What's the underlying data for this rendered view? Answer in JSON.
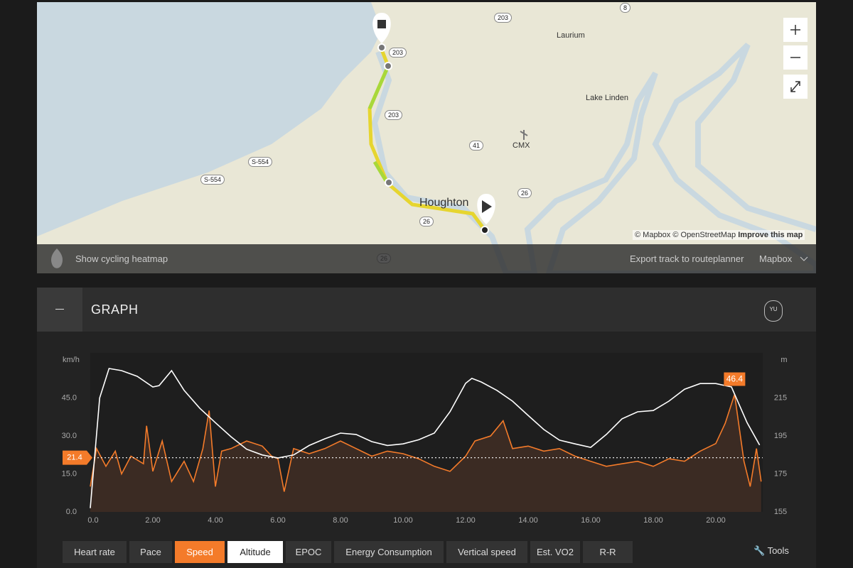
{
  "map": {
    "places": [
      "Laurium",
      "Lake Linden",
      "CMX",
      "Houghton"
    ],
    "shields": [
      "203",
      "8",
      "203",
      "203",
      "41",
      "26",
      "S-554",
      "S-554",
      "26",
      "26"
    ],
    "attribution": "© Mapbox © OpenStreetMap",
    "improve": "Improve this map",
    "heatmap": "Show cycling heatmap",
    "export": "Export track to routeplanner",
    "provider": "Mapbox"
  },
  "graph": {
    "title": "GRAPH",
    "badge": "YU",
    "tabs": [
      "Heart rate",
      "Pace",
      "Speed",
      "Altitude",
      "EPOC",
      "Energy Consumption",
      "Vertical speed",
      "Est. VO2",
      "R-R"
    ],
    "tools": "Tools"
  },
  "chart_data": {
    "type": "line",
    "y_label": "km/h",
    "y2_label": "m",
    "xlim": [
      0,
      21.5
    ],
    "xticks": [
      {
        "value": 0,
        "label": "0.0"
      },
      {
        "value": 2,
        "label": "2.00"
      },
      {
        "value": 4,
        "label": "4.00"
      },
      {
        "value": 6,
        "label": "6.00"
      },
      {
        "value": 8,
        "label": "8.00"
      },
      {
        "value": 10,
        "label": "10.00"
      },
      {
        "value": 12,
        "label": "12.00"
      },
      {
        "value": 14,
        "label": "14.00"
      },
      {
        "value": 16,
        "label": "16.00"
      },
      {
        "value": 18,
        "label": "18.00"
      },
      {
        "value": 20,
        "label": "20.00"
      }
    ],
    "ylim": [
      0,
      60
    ],
    "yticks": [
      {
        "value": 0,
        "label": "0.0"
      },
      {
        "value": 15,
        "label": "15.0"
      },
      {
        "value": 30,
        "label": "30.0"
      },
      {
        "value": 45,
        "label": "45.0"
      }
    ],
    "y2lim": [
      155,
      235
    ],
    "y2ticks": [
      155,
      175,
      195,
      215
    ],
    "average": 21.4,
    "maximum": {
      "x": 20.6,
      "value": 46.4
    },
    "series": [
      {
        "name": "Speed",
        "color": "#f47b2a",
        "fill": "#3b2b23",
        "x": [
          0,
          0.2,
          0.5,
          0.8,
          1.0,
          1.3,
          1.7,
          1.8,
          2.0,
          2.3,
          2.6,
          3.0,
          3.3,
          3.6,
          3.8,
          4.0,
          4.2,
          4.5,
          5.0,
          5.5,
          5.8,
          6.0,
          6.2,
          6.5,
          7.0,
          7.5,
          8.0,
          8.5,
          9.0,
          9.5,
          10.0,
          10.5,
          11.0,
          11.5,
          12.0,
          12.3,
          12.8,
          13.2,
          13.5,
          14.0,
          14.5,
          15.0,
          15.5,
          16.0,
          16.5,
          17.0,
          17.5,
          18.0,
          18.5,
          19.0,
          19.5,
          20.0,
          20.3,
          20.6,
          20.9,
          21.1,
          21.3,
          21.45
        ],
        "values": [
          10,
          25,
          18,
          24,
          15,
          22,
          19,
          34,
          16,
          28,
          12,
          20,
          12,
          25,
          40,
          10,
          24,
          25,
          28,
          26,
          22,
          21,
          8,
          25,
          23,
          25,
          28,
          25,
          22,
          24,
          23,
          21,
          18,
          16,
          22,
          28,
          30,
          36,
          25,
          26,
          24,
          25,
          22,
          20,
          18,
          19,
          20,
          18,
          21,
          20,
          24,
          27,
          35,
          46.4,
          20,
          10,
          25,
          12
        ]
      },
      {
        "name": "Altitude",
        "color": "#ffffff",
        "axis": "y2",
        "x": [
          0,
          0.3,
          0.6,
          1.0,
          1.5,
          2.0,
          2.2,
          2.6,
          3.0,
          3.5,
          4.0,
          4.5,
          5.0,
          5.5,
          6.0,
          6.5,
          7.0,
          7.5,
          8.0,
          8.5,
          9.0,
          9.5,
          10.0,
          10.5,
          11.0,
          11.5,
          12.0,
          12.2,
          12.5,
          13.0,
          13.5,
          14.0,
          14.5,
          15.0,
          15.5,
          16.0,
          16.5,
          17.0,
          17.5,
          18.0,
          18.5,
          19.0,
          19.5,
          20.0,
          20.5,
          21.0,
          21.4
        ],
        "values": [
          157,
          215,
          230.5,
          229.4,
          226.4,
          220.8,
          221.5,
          229.4,
          219,
          209.6,
          202,
          194.6,
          188,
          185,
          183.4,
          185,
          190,
          193.5,
          196.5,
          195.8,
          192,
          190,
          190.8,
          193,
          196.5,
          207.7,
          222.7,
          225.3,
          223.4,
          219,
          213.3,
          205.8,
          198.4,
          192.8,
          190.8,
          189,
          195.8,
          204,
          207.7,
          208.4,
          213.3,
          219.6,
          222.6,
          222.6,
          220.8,
          202,
          190.2
        ]
      }
    ]
  }
}
